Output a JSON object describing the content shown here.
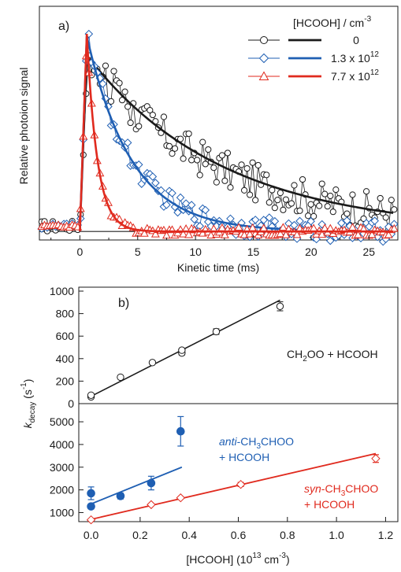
{
  "chart_data": [
    {
      "type": "line",
      "panel_label": "a)",
      "xlabel": "Kinetic time (ms)",
      "ylabel": "Relative photoion signal",
      "xlim": [
        -3.5,
        27.5
      ],
      "ylim": [
        -0.04,
        1.06
      ],
      "xticks": [
        0,
        5,
        10,
        15,
        20,
        25
      ],
      "yticks_shown": false,
      "grid": false,
      "legend_title": "[HCOOH] / cm",
      "legend_title_superscript": "-3",
      "legend_placement": "top-right",
      "baseline_color": "#222222",
      "series": [
        {
          "name": "0",
          "color": "#1a1a1a",
          "marker": "circle",
          "amplitude": 0.8,
          "decay_rate_per_ms": 0.085,
          "noise": 0.09,
          "fit_amplitude": 0.83,
          "fit_decay_rate_per_ms": 0.085
        },
        {
          "name": "1.3 x 10",
          "name_superscript": "12",
          "color": "#1f5fb3",
          "marker": "diamond",
          "amplitude": 0.93,
          "decay_rate_per_ms": 0.26,
          "noise": 0.05,
          "fit_amplitude": 0.92,
          "fit_decay_rate_per_ms": 0.26
        },
        {
          "name": "7.7 x 10",
          "name_superscript": "12",
          "color": "#e02a1e",
          "marker": "triangle",
          "amplitude": 0.93,
          "decay_rate_per_ms": 1.1,
          "noise": 0.02,
          "fit_amplitude": 0.93,
          "fit_decay_rate_per_ms": 1.1
        }
      ]
    },
    {
      "type": "scatter",
      "panel_label": "b)",
      "title": "",
      "annotation": "CH2OO + HCOOH",
      "xlim": [
        0,
        1.25
      ],
      "ylim": [
        0,
        1000
      ],
      "yticks": [
        0,
        200,
        400,
        600,
        800,
        1000
      ],
      "grid": false,
      "series": [
        {
          "name": "CH2OO + HCOOH",
          "color": "#1a1a1a",
          "marker": "open-circle",
          "x": [
            0.0,
            0.0,
            0.12,
            0.25,
            0.37,
            0.37,
            0.51,
            0.77
          ],
          "y": [
            60,
            75,
            235,
            365,
            450,
            475,
            640,
            865
          ],
          "yerr": [
            0,
            0,
            0,
            0,
            18,
            0,
            25,
            40
          ],
          "fit": {
            "x": [
              0.0,
              0.77
            ],
            "y": [
              65,
              920
            ]
          }
        }
      ]
    },
    {
      "type": "scatter",
      "xlabel": "[HCOOH] (10",
      "xlabel_superscript": "13",
      "xlabel_unit": " cm",
      "xlabel_unit_superscript": "-3",
      "xlabel_close": ")",
      "ylabel": "k",
      "ylabel_subscript": "decay",
      "ylabel_unit": " (s",
      "ylabel_unit_superscript": "-1",
      "ylabel_close": ")",
      "xlim": [
        -0.05,
        1.25
      ],
      "ylim": [
        600,
        5800
      ],
      "xticks": [
        0.0,
        0.2,
        0.4,
        0.6,
        0.8,
        1.0,
        1.2
      ],
      "xtick_labels": [
        "0.0",
        "0.2",
        "0.4",
        "0.6",
        "0.8",
        "1.0",
        "1.2"
      ],
      "yticks": [
        1000,
        2000,
        3000,
        4000,
        5000
      ],
      "grid": false,
      "series": [
        {
          "name": "anti-CH3CHOO + HCOOH",
          "color": "#1f5fb3",
          "marker": "filled-circle",
          "x": [
            0.0,
            0.0,
            0.12,
            0.245,
            0.365
          ],
          "y": [
            1850,
            1270,
            1730,
            2300,
            4580
          ],
          "yerr": [
            280,
            100,
            130,
            300,
            650
          ],
          "fit": {
            "x": [
              0.0,
              0.37
            ],
            "y": [
              1380,
              3000
            ]
          }
        },
        {
          "name": "syn-CH3CHOO + HCOOH",
          "color": "#e02a1e",
          "marker": "open-diamond",
          "x": [
            0.0,
            0.245,
            0.365,
            0.61,
            1.16
          ],
          "y": [
            680,
            1350,
            1650,
            2240,
            3380
          ],
          "yerr": [
            0,
            0,
            0,
            90,
            170
          ],
          "fit": {
            "x": [
              0.0,
              1.16
            ],
            "y": [
              700,
              3600
            ]
          }
        }
      ]
    }
  ],
  "labels": {
    "legend_value_0": "0",
    "annot_ch2oo_a": "CH",
    "annot_ch2oo_sub": "2",
    "annot_ch2oo_b": "OO + HCOOH",
    "annot_anti_prefix": "anti",
    "annot_anti_a": "-CH",
    "annot_anti_sub": "3",
    "annot_anti_b": "CHOO",
    "annot_anti_line2": "+ HCOOH",
    "annot_syn_prefix": "syn",
    "annot_syn_a": "-CH",
    "annot_syn_sub": "3",
    "annot_syn_b": "CHOO",
    "annot_syn_line2": "+ HCOOH"
  }
}
